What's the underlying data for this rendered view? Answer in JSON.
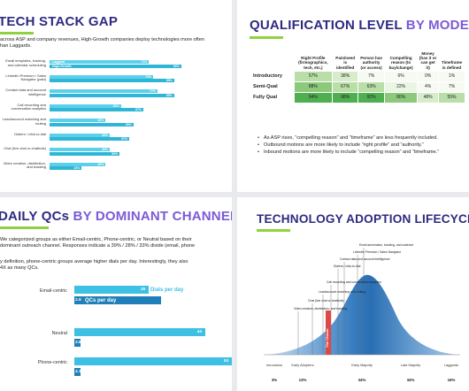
{
  "slide1": {
    "title_a": "TECH STACK GAP",
    "intro_line1": "across ASP and company revenues, High-Growth companies deploy technologies more often",
    "intro_line2": "han Laggards.",
    "legend": [
      "Laggard",
      "High-Growth"
    ],
    "rows": [
      {
        "label": "Email templates, tracking, and calendar scheduling",
        "laggard": "71%",
        "growth": "94%"
      },
      {
        "label": "LinkedIn Premium / Sales Navigator (paid)",
        "laggard": "74%",
        "growth": "89%"
      },
      {
        "label": "Contact data and account intelligence",
        "laggard": "77%",
        "growth": "89%"
      },
      {
        "label": "Call recording and conversation analytics",
        "laggard": "51%",
        "growth": "67%"
      },
      {
        "label": "Lead/account matching and routing",
        "laggard": "40%",
        "growth": "60%"
      },
      {
        "label": "Dialers / click-to-dial",
        "laggard": "43%",
        "growth": "57%"
      },
      {
        "label": "Chat (live chat or chatbots)",
        "laggard": "43%",
        "growth": "50%"
      },
      {
        "label": "Video creation, distribution, and tracking",
        "laggard": "40%",
        "growth": "23%"
      }
    ]
  },
  "slide2": {
    "title_a": "QUALIFICATION LEVEL ",
    "title_b": "BY MODEL",
    "headers": [
      "Right Profile (firmographics, tech, etc.)",
      "Pain/need is identified",
      "Person has authority (or access)",
      "Compelling reason (to buy/change)",
      "Money (has it or can get it)",
      "Timeframe is defined"
    ],
    "rows": [
      {
        "name": "Introductory",
        "values": [
          "57%",
          "38%",
          "7%",
          "6%",
          "0%",
          "1%"
        ]
      },
      {
        "name": "Semi-Qual",
        "values": [
          "88%",
          "67%",
          "63%",
          "22%",
          "4%",
          "7%"
        ]
      },
      {
        "name": "Fully Qual",
        "values": [
          "94%",
          "98%",
          "92%",
          "80%",
          "48%",
          "55%"
        ]
      }
    ],
    "bullets": [
      "As ASP rises, “compelling reason” and “timeframe” are less frequently included.",
      "Outbound motions are more likely to include “right profile” and “authority.”",
      "Inbound motions are more likely to include “compelling reason” and “timeframe.”"
    ]
  },
  "slide3": {
    "title_a": "DAILY QCs ",
    "title_b": "BY DOMINANT CHANNEL",
    "para1_line1": "We categorized groups as either Email-centric, Phone-centric, or Neutral based on their",
    "para1_line2": "dominant outreach channel. Responses indicate a 39% / 28% / 33% divide (email, phone",
    "para2_line1": "y definition, phone-centric groups average higher dials per day. Interestingly, they also",
    "para2_line2": "4X as many QCs.",
    "legend_dials": "Dials per day",
    "legend_qcs": "QCs per day",
    "rows": [
      {
        "label": "Email-centric",
        "dials": "25",
        "qcs": "2.9"
      },
      {
        "label": "Neutral",
        "dials": "44",
        "qcs": "3.8"
      },
      {
        "label": "Phone-centric",
        "dials": "53",
        "qcs": "4.1"
      }
    ]
  },
  "slide4": {
    "title_a": "TECHNOLOGY ADOPTION LIFECYCLE",
    "chasm_label": "The Chasm",
    "callouts": [
      "Email automation, tracking, and cadence",
      "LinkedIn Premium / Sales Navigator",
      "Contact data and account intelligence",
      "Dialers / click-to-dial",
      "Call recording and conversation analytics",
      "Lead/account matching and routing",
      "Chat (live chat or chatbots)",
      "Video creation, distribution, and tracking"
    ],
    "segments": [
      {
        "label": "Innovators",
        "pct": "3%"
      },
      {
        "label": "Early Adopters",
        "pct": "13%"
      },
      {
        "label": "Early Majority",
        "pct": "34%"
      },
      {
        "label": "Late Majority",
        "pct": "34%"
      },
      {
        "label": "Laggards",
        "pct": "16%"
      }
    ]
  },
  "colors": {
    "title_dark": "#2e2a82",
    "title_light": "#7a5bd6",
    "accent_green": "#8fd13f",
    "bar_light": "#5cd0ea",
    "bar_dark": "#2fb5d6",
    "chasm_red": "#e04848"
  }
}
